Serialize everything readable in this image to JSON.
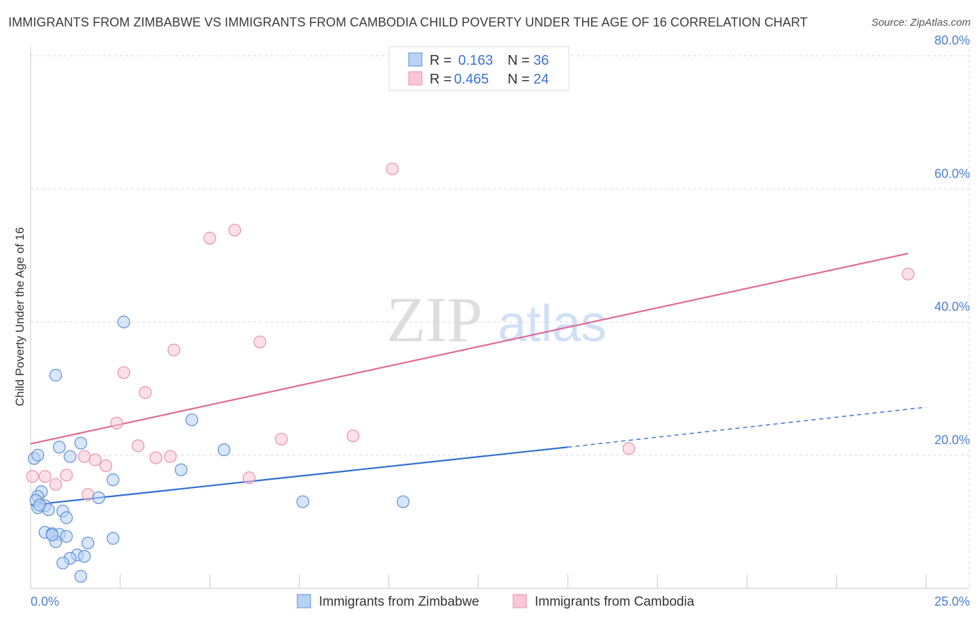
{
  "title": "IMMIGRANTS FROM ZIMBABWE VS IMMIGRANTS FROM CAMBODIA CHILD POVERTY UNDER THE AGE OF 16 CORRELATION CHART",
  "source": "Source: ZipAtlas.com",
  "watermark": {
    "zip": "ZIP",
    "atlas": "atlas"
  },
  "colors": {
    "zimbabwe_fill": "#b8d2f5",
    "zimbabwe_stroke": "#5b8fd6",
    "zimbabwe_line": "#2f6fd0",
    "cambodia_fill": "#f9c7d5",
    "cambodia_stroke": "#e890aa",
    "cambodia_line": "#e06a94",
    "grid": "#d9d9d9",
    "tick": "#4a7fd1"
  },
  "legend": {
    "rows": [
      {
        "r_label": "R =",
        "r_value": "0.163",
        "n_label": "N =",
        "n_value": "36"
      },
      {
        "r_label": "R =",
        "r_value": "0.465",
        "n_label": "N =",
        "n_value": "24"
      }
    ]
  },
  "chart_data": {
    "type": "scatter",
    "ylabel": "Child Poverty Under the Age of 16",
    "xlim": [
      0,
      25
    ],
    "ylim": [
      0,
      80
    ],
    "x_tick_labels": [
      "0.0%",
      "25.0%"
    ],
    "y_ticks": [
      20,
      40,
      60,
      80
    ],
    "y_tick_labels": [
      "20.0%",
      "40.0%",
      "60.0%",
      "80.0%"
    ],
    "grid": true,
    "series": [
      {
        "name": "Immigrants from Zimbabwe",
        "points": [
          [
            0.1,
            19.5
          ],
          [
            0.2,
            20.0
          ],
          [
            0.3,
            14.5
          ],
          [
            0.2,
            13.8
          ],
          [
            0.15,
            13.2
          ],
          [
            0.4,
            12.4
          ],
          [
            0.2,
            12.1
          ],
          [
            0.5,
            11.8
          ],
          [
            0.9,
            11.6
          ],
          [
            1.0,
            10.6
          ],
          [
            0.4,
            8.4
          ],
          [
            0.6,
            8.2
          ],
          [
            0.8,
            8.1
          ],
          [
            1.0,
            7.8
          ],
          [
            0.7,
            7.0
          ],
          [
            1.6,
            6.8
          ],
          [
            1.3,
            5.0
          ],
          [
            1.5,
            4.8
          ],
          [
            1.1,
            4.5
          ],
          [
            0.9,
            3.8
          ],
          [
            1.4,
            1.8
          ],
          [
            0.8,
            21.2
          ],
          [
            1.4,
            21.8
          ],
          [
            1.1,
            19.8
          ],
          [
            1.9,
            13.6
          ],
          [
            2.3,
            16.3
          ],
          [
            2.3,
            7.5
          ],
          [
            2.6,
            40.0
          ],
          [
            0.7,
            32.0
          ],
          [
            4.5,
            25.3
          ],
          [
            4.2,
            17.8
          ],
          [
            5.4,
            20.8
          ],
          [
            7.6,
            13.0
          ],
          [
            10.4,
            13.0
          ],
          [
            0.25,
            12.5
          ],
          [
            0.6,
            8.0
          ]
        ],
        "trend": {
          "x": [
            0,
            15
          ],
          "y": [
            12.5,
            21.2
          ],
          "dashed_to": [
            25,
            27.2
          ]
        }
      },
      {
        "name": "Immigrants from Cambodia",
        "points": [
          [
            0.05,
            16.8
          ],
          [
            0.4,
            16.8
          ],
          [
            0.7,
            15.6
          ],
          [
            1.0,
            17.0
          ],
          [
            1.5,
            19.8
          ],
          [
            1.8,
            19.3
          ],
          [
            2.1,
            18.4
          ],
          [
            1.6,
            14.1
          ],
          [
            2.4,
            24.8
          ],
          [
            2.6,
            32.4
          ],
          [
            3.0,
            21.4
          ],
          [
            3.2,
            29.4
          ],
          [
            3.5,
            19.6
          ],
          [
            3.9,
            19.8
          ],
          [
            4.0,
            35.8
          ],
          [
            5.0,
            52.6
          ],
          [
            5.7,
            53.8
          ],
          [
            6.4,
            37.0
          ],
          [
            6.1,
            16.6
          ],
          [
            7.0,
            22.4
          ],
          [
            9.0,
            22.9
          ],
          [
            10.1,
            63.0
          ],
          [
            16.7,
            21.0
          ],
          [
            24.5,
            47.2
          ]
        ],
        "trend": {
          "x": [
            0,
            24.5
          ],
          "y": [
            21.7,
            50.3
          ]
        }
      }
    ]
  }
}
